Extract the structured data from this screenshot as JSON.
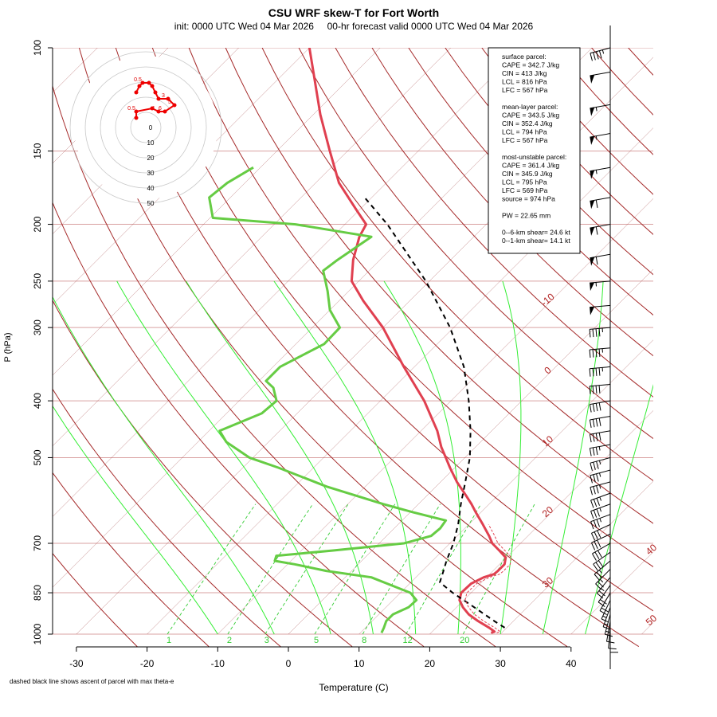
{
  "header": {
    "title": "CSU WRF skew-T for Fort Worth",
    "subtitle": "init: 0000 UTC Wed 04 Mar 2026     00-hr forecast valid 0000 UTC Wed 04 Mar 2026"
  },
  "axes": {
    "xlabel": "Temperature (C)",
    "ylabel": "P (hPa)",
    "footnote": "dashed black line shows ascent of parcel with max theta-e"
  },
  "info_box": {
    "lines": [
      "surface parcel:",
      "CAPE = 342.7 J/kg",
      "CIN = 413 J/kg",
      "LCL = 816 hPa",
      "LFC = 567 hPa",
      "",
      "mean-layer parcel:",
      "CAPE = 343.5 J/kg",
      "CIN = 352.4 J/kg",
      "LCL = 794 hPa",
      "LFC = 567 hPa",
      "",
      "most-unstable parcel:",
      "CAPE = 361.4 J/kg",
      "CIN = 345.9 J/kg",
      "LCL = 795 hPa",
      "LFC = 569 hPa",
      "source = 974 hPa",
      "",
      "PW =  22.65 mm",
      "",
      "0--6-km shear= 24.6 kt",
      "0--1-km shear= 14.1 kt"
    ]
  },
  "colors": {
    "temperature": "#e04050",
    "dewpoint": "#66cc44",
    "parcel": "#000000",
    "isotherm": "#8b1a1a",
    "isobar": "#d9a0a0",
    "dry_adiabat": "#a52a2a",
    "moist_adiabat": "#33ee33",
    "mixing_ratio": "#33cc33",
    "hodograph": "#ee0000"
  },
  "chart_data": {
    "type": "line",
    "title": "CSU WRF skew-T for Fort Worth",
    "xlabel": "Temperature (C)",
    "ylabel": "P (hPa)",
    "x_ticks": [
      -30,
      -20,
      -10,
      0,
      10,
      20,
      30,
      40
    ],
    "y_ticks": [
      100,
      150,
      200,
      250,
      300,
      400,
      500,
      700,
      850,
      1000
    ],
    "xlim": [
      -33,
      45
    ],
    "ylim": [
      1000,
      100
    ],
    "y_scale": "log",
    "skew": "45 degrees",
    "grid": true,
    "isotherm_labels": [
      -10,
      0,
      10,
      20,
      30,
      40,
      50
    ],
    "mixing_ratio_labels": [
      1,
      2,
      3,
      5,
      8,
      12,
      20
    ],
    "series": [
      {
        "name": "temperature",
        "pressure": [
          995,
          990,
          975,
          950,
          925,
          900,
          875,
          850,
          820,
          800,
          790,
          780,
          760,
          740,
          720,
          700,
          680,
          650,
          620,
          600,
          580,
          550,
          520,
          500,
          480,
          450,
          400,
          350,
          300,
          270,
          250,
          230,
          210,
          200,
          190,
          170,
          150,
          130,
          110,
          100
        ],
        "temperature_c": [
          28.5,
          28.8,
          27.5,
          25.0,
          22.7,
          20.9,
          19.4,
          18.6,
          18.7,
          19.6,
          20.6,
          20.7,
          20.7,
          19.9,
          18.0,
          16.0,
          14.5,
          12.0,
          9.3,
          7.5,
          5.5,
          2.3,
          -0.7,
          -2.7,
          -4.8,
          -7.7,
          -13.8,
          -21.5,
          -30.0,
          -36.6,
          -41.0,
          -43.8,
          -46.2,
          -47.0,
          -50.1,
          -56.7,
          -62.5,
          -69.0,
          -76.0,
          -80.0
        ]
      },
      {
        "name": "dewpoint",
        "pressure": [
          995,
          975,
          950,
          925,
          900,
          875,
          850,
          800,
          780,
          760,
          750,
          735,
          720,
          700,
          680,
          660,
          640,
          620,
          600,
          560,
          520,
          500,
          470,
          450,
          420,
          400,
          380,
          370,
          350,
          320,
          300,
          280,
          260,
          240,
          230,
          210,
          200,
          195,
          180,
          170,
          160
        ],
        "temperature_c": [
          13.0,
          12.6,
          12.0,
          12.0,
          13.2,
          13.3,
          11.4,
          3.7,
          -3.6,
          -9.0,
          -12.3,
          -12.8,
          -5.5,
          3.5,
          6.3,
          6.5,
          6.2,
          0.5,
          -5.0,
          -15.5,
          -25.0,
          -30.5,
          -36.0,
          -38.5,
          -35.0,
          -34.7,
          -37.0,
          -39.0,
          -39.0,
          -36.0,
          -36.1,
          -40.0,
          -43.0,
          -46.5,
          -46.0,
          -44.5,
          -57.0,
          -69.6,
          -73.0,
          -72.5,
          -71.0
        ]
      },
      {
        "name": "parcel ascent (max theta-e)",
        "pressure": [
          975,
          950,
          900,
          850,
          816,
          800,
          780,
          750,
          700,
          650,
          600,
          550,
          500,
          450,
          400,
          350,
          300,
          250,
          200,
          180
        ],
        "temperature_c": [
          29.7,
          27.3,
          22.5,
          17.4,
          14.1,
          13.6,
          13.0,
          12.0,
          10.5,
          8.5,
          6.0,
          3.5,
          0.7,
          -3.0,
          -7.5,
          -13.0,
          -20.5,
          -30.5,
          -44.0,
          -51.0
        ]
      }
    ],
    "hodograph": {
      "ring_labels": [
        0,
        10,
        20,
        30,
        40,
        50
      ],
      "point_labels": [
        "0.5",
        "1",
        "3",
        "5",
        "6",
        "0.5"
      ],
      "u_kt": [
        -3,
        -3,
        2,
        4,
        6,
        9,
        7,
        4,
        3,
        2,
        1,
        -1,
        -2,
        -3
      ],
      "v_kt": [
        -2,
        0,
        1,
        0,
        0,
        2,
        4,
        4,
        6,
        8,
        9,
        9,
        8,
        6
      ]
    },
    "wind_barbs": {
      "pressure": [
        990,
        975,
        950,
        925,
        900,
        875,
        850,
        825,
        800,
        775,
        750,
        725,
        700,
        675,
        650,
        625,
        600,
        575,
        550,
        525,
        500,
        475,
        450,
        425,
        400,
        375,
        350,
        325,
        300,
        275,
        250,
        225,
        200,
        180,
        160,
        140,
        125,
        110,
        100
      ],
      "direction_deg": [
        180,
        185,
        190,
        195,
        200,
        205,
        210,
        215,
        220,
        225,
        230,
        235,
        240,
        245,
        245,
        250,
        250,
        250,
        255,
        255,
        255,
        260,
        260,
        260,
        260,
        265,
        265,
        265,
        265,
        265,
        265,
        260,
        260,
        260,
        260,
        260,
        260,
        260,
        255
      ],
      "speed_kt": [
        10,
        10,
        10,
        15,
        15,
        15,
        20,
        20,
        25,
        25,
        25,
        30,
        30,
        30,
        30,
        35,
        35,
        35,
        35,
        35,
        35,
        35,
        40,
        40,
        40,
        40,
        45,
        45,
        45,
        50,
        55,
        60,
        60,
        60,
        55,
        55,
        55,
        50,
        45
      ]
    }
  }
}
